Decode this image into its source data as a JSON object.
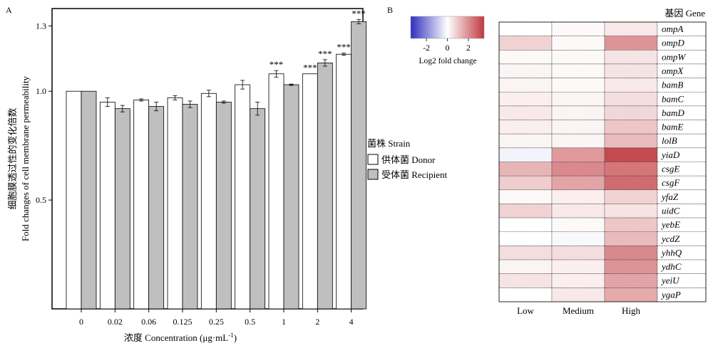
{
  "panel_a_label": "A",
  "panel_b_label": "B",
  "chart_data": [
    {
      "type": "bar",
      "title": "",
      "ylabel_cn": "细胞膜透过性的变化倍数",
      "ylabel": "Fold changes of cell membrane permeability",
      "xlabel": "浓度 Concentration (μg·mL",
      "xlabel_sup": "-1",
      "xlabel_close": ")",
      "ylim": [
        0.0,
        1.38
      ],
      "yticks": [
        {
          "label": "0.5",
          "value": 0.5
        },
        {
          "label": "1.0",
          "value": 1.0
        },
        {
          "label": "1.3",
          "value": 1.3
        }
      ],
      "categories": [
        "0",
        "0.02",
        "0.06",
        "0.125",
        "0.25",
        "0.5",
        "1",
        "2",
        "4"
      ],
      "series": [
        {
          "name": "供体菌 Donor",
          "color": "#ffffff",
          "values": [
            1.0,
            0.95,
            0.96,
            0.97,
            0.99,
            1.03,
            1.08,
            1.08,
            1.17
          ],
          "errors": [
            0.0,
            0.02,
            0.005,
            0.01,
            0.015,
            0.02,
            0.015,
            0.0,
            0.005
          ]
        },
        {
          "name": "受体菌 Recipient",
          "color": "#bfbfbf",
          "values": [
            1.0,
            0.92,
            0.93,
            0.94,
            0.95,
            0.92,
            1.03,
            1.13,
            1.32
          ],
          "errors": [
            0.0,
            0.015,
            0.02,
            0.015,
            0.005,
            0.03,
            0.003,
            0.015,
            0.01
          ]
        }
      ],
      "annotations": [
        {
          "category": "1",
          "series": 0,
          "text": "***"
        },
        {
          "category": "2",
          "series": 0,
          "text": "***"
        },
        {
          "category": "2",
          "series": 1,
          "text": "***"
        },
        {
          "category": "4",
          "series": 0,
          "text": "***"
        },
        {
          "category": "4",
          "series": 1,
          "text": "***"
        }
      ],
      "legend_title": "菌株 Strain",
      "legend_position": "right"
    },
    {
      "type": "heatmap",
      "colorbar_title": "Log2 fold change",
      "colorbar_ticks": [
        {
          "label": "-2",
          "value": -2
        },
        {
          "label": "0",
          "value": 0
        },
        {
          "label": "2",
          "value": 2
        }
      ],
      "colorbar_range": [
        -3.5,
        3.5
      ],
      "colors": {
        "low": "#2f2fbf",
        "mid": "#ffffff",
        "high": "#c0393e"
      },
      "gene_header": "基因 Gene",
      "columns": [
        "Low",
        "Medium",
        "High"
      ],
      "rows": [
        "ompA",
        "ompD",
        "ompW",
        "ompX",
        "bamB",
        "bamC",
        "bamD",
        "bamE",
        "lolB",
        "yiaD",
        "csgE",
        "csgF",
        "yfaZ",
        "uidC",
        "yebE",
        "ycdZ",
        "yhhQ",
        "ydhC",
        "yeiU",
        "ygaP"
      ],
      "values": [
        [
          0.0,
          0.1,
          0.4
        ],
        [
          0.8,
          0.1,
          1.9
        ],
        [
          0.1,
          0.1,
          0.5
        ],
        [
          0.2,
          0.1,
          0.5
        ],
        [
          0.2,
          0.1,
          0.4
        ],
        [
          0.3,
          0.2,
          0.6
        ],
        [
          0.4,
          0.2,
          0.7
        ],
        [
          0.3,
          0.2,
          1.0
        ],
        [
          0.2,
          0.2,
          1.2
        ],
        [
          -0.2,
          1.8,
          3.2
        ],
        [
          1.3,
          2.1,
          2.4
        ],
        [
          0.9,
          1.6,
          2.6
        ],
        [
          0.1,
          0.3,
          0.8
        ],
        [
          0.8,
          0.4,
          0.5
        ],
        [
          0.0,
          0.1,
          1.0
        ],
        [
          0.0,
          -0.1,
          1.2
        ],
        [
          0.6,
          0.6,
          2.1
        ],
        [
          0.2,
          0.3,
          1.9
        ],
        [
          0.5,
          0.3,
          1.6
        ],
        [
          0.0,
          0.4,
          1.5
        ]
      ]
    }
  ]
}
